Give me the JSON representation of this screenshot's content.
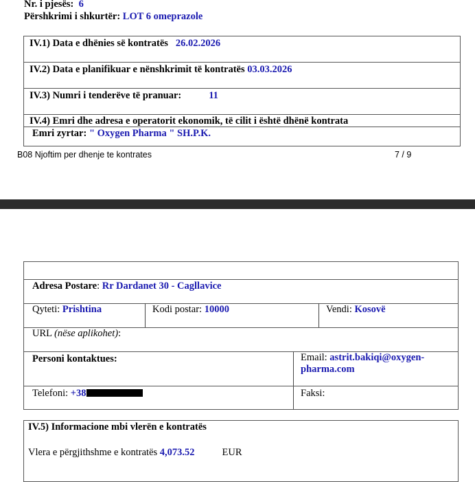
{
  "page1": {
    "part_number_label": "Nr. i pjesës",
    "part_number": "6",
    "short_desc_label": "Përshkrimi i shkurtër:",
    "short_desc": "LOT 6 omeprazole",
    "iv1_label": "IV.1) Data e dhënies së kontratës",
    "iv1_value": "26.02.2026",
    "iv2_label": "IV.2) Data e planifikuar e nënshkrimit të kontratës",
    "iv2_value": "03.03.2026",
    "iv3_label": "IV.3) Numri i tenderëve të pranuar:",
    "iv3_value": "11",
    "iv4_label": "IV.4) Emri dhe adresa e operatorit ekonomik, të cilit i është dhënë kontrata",
    "official_name_label": "Emri zyrtar",
    "official_name": "\" Oxygen Pharma \" SH.P.K.",
    "footer_title": "B08  Njoftim per dhenje te kontrates",
    "footer_page": "7 / 9"
  },
  "page2": {
    "postal_address_label": "Adresa Postare",
    "postal_address": "Rr Dardanet 30 - Cagllavice",
    "city_label": "Qyteti:",
    "city": "Prishtina",
    "postal_code_label": "Kodi postar:",
    "postal_code": "10000",
    "country_label": "Vendi:",
    "country": "Kosovë",
    "url_label": "URL",
    "url_hint": "(nëse aplikohet)",
    "contact_label": "Personi kontaktues",
    "email_label": "Email:",
    "email_line1": "astrit.bakiqi@oxygen-",
    "email_line2": "pharma.com",
    "phone_label": "Telefoni:",
    "phone_visible": "+38",
    "fax_label": "Faksi:",
    "iv5_label": "IV.5) Informacione mbi vlerën e kontratës",
    "total_value_label": "Vlera e përgjithshme e kontratës",
    "total_value": "4,073.52",
    "currency": "EUR"
  }
}
